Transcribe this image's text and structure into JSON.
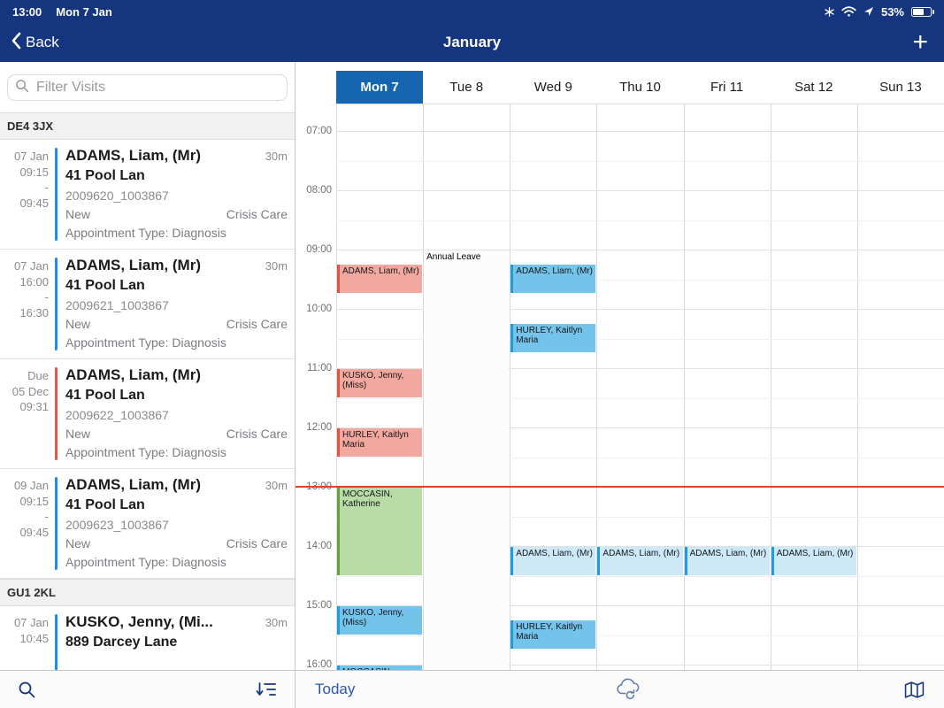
{
  "status_bar": {
    "time": "13:00",
    "date": "Mon 7 Jan",
    "battery_percent": "53%"
  },
  "nav_bar": {
    "back_label": "Back",
    "title": "January",
    "add_label": "+"
  },
  "sidebar": {
    "filter_placeholder": "Filter Visits",
    "sections": [
      {
        "header": "DE4 3JX",
        "visits": [
          {
            "time_lines": [
              "07 Jan",
              "09:15",
              "-",
              "09:45"
            ],
            "accent": "blue",
            "title": "ADAMS, Liam, (Mr)",
            "duration": "30m",
            "address": "41 Pool Lan",
            "reference": "2009620_1003867",
            "status": "New",
            "care_type": "Crisis Care",
            "appointment_type": "Appointment Type: Diagnosis"
          },
          {
            "time_lines": [
              "07 Jan",
              "16:00",
              "-",
              "16:30"
            ],
            "accent": "blue",
            "title": "ADAMS, Liam, (Mr)",
            "duration": "30m",
            "address": "41 Pool Lan",
            "reference": "2009621_1003867",
            "status": "New",
            "care_type": "Crisis Care",
            "appointment_type": "Appointment Type: Diagnosis"
          },
          {
            "time_lines": [
              "Due",
              "05 Dec",
              "09:31"
            ],
            "accent": "red",
            "title": "ADAMS, Liam, (Mr)",
            "duration": "",
            "address": "41 Pool Lan",
            "reference": "2009622_1003867",
            "status": "New",
            "care_type": "Crisis Care",
            "appointment_type": "Appointment Type: Diagnosis"
          },
          {
            "time_lines": [
              "09 Jan",
              "09:15",
              "-",
              "09:45"
            ],
            "accent": "blue",
            "title": "ADAMS, Liam, (Mr)",
            "duration": "30m",
            "address": "41 Pool Lan",
            "reference": "2009623_1003867",
            "status": "New",
            "care_type": "Crisis Care",
            "appointment_type": "Appointment Type: Diagnosis"
          }
        ]
      },
      {
        "header": "GU1 2KL",
        "visits": [
          {
            "time_lines": [
              "07 Jan",
              "10:45"
            ],
            "accent": "blue",
            "title": "KUSKO, Jenny, (Mi...",
            "duration": "30m",
            "address": "889 Darcey Lane",
            "reference": "",
            "status": "",
            "care_type": "",
            "appointment_type": ""
          }
        ]
      }
    ]
  },
  "calendar": {
    "title_days": [
      {
        "label": "Mon 7",
        "selected": true
      },
      {
        "label": "Tue 8",
        "selected": false
      },
      {
        "label": "Wed 9",
        "selected": false
      },
      {
        "label": "Thu 10",
        "selected": false
      },
      {
        "label": "Fri 11",
        "selected": false
      },
      {
        "label": "Sat 12",
        "selected": false
      },
      {
        "label": "Sun 13",
        "selected": false
      }
    ],
    "hours": [
      "07:00",
      "08:00",
      "09:00",
      "10:00",
      "11:00",
      "12:00",
      "13:00",
      "14:00",
      "15:00",
      "16:00"
    ],
    "events": [
      {
        "day": 0,
        "start": "09:15",
        "end": "09:45",
        "title": "ADAMS, Liam, (Mr)",
        "type": "red"
      },
      {
        "day": 0,
        "start": "11:00",
        "end": "11:30",
        "title": "KUSKO, Jenny, (Miss)",
        "type": "red"
      },
      {
        "day": 0,
        "start": "12:00",
        "end": "12:30",
        "title": "HURLEY, Kaitlyn Maria",
        "type": "red"
      },
      {
        "day": 0,
        "start": "13:00",
        "end": "14:30",
        "title": "MOCCASIN, Katherine",
        "type": "green"
      },
      {
        "day": 0,
        "start": "15:00",
        "end": "15:30",
        "title": "KUSKO, Jenny, (Miss)",
        "type": "blue"
      },
      {
        "day": 0,
        "start": "16:00",
        "end": "16:30",
        "title": "MOCCASIN, Katherine",
        "type": "blue"
      },
      {
        "day": 1,
        "start": "09:00",
        "end": "16:30",
        "title": "Annual Leave",
        "type": "leave"
      },
      {
        "day": 2,
        "start": "09:15",
        "end": "09:45",
        "title": "ADAMS, Liam, (Mr)",
        "type": "blue"
      },
      {
        "day": 2,
        "start": "10:15",
        "end": "10:45",
        "title": "HURLEY, Kaitlyn Maria",
        "type": "blue"
      },
      {
        "day": 2,
        "start": "14:00",
        "end": "14:30",
        "title": "ADAMS, Liam, (Mr)",
        "type": "paleblue"
      },
      {
        "day": 2,
        "start": "15:15",
        "end": "15:45",
        "title": "HURLEY, Kaitlyn Maria",
        "type": "blue"
      },
      {
        "day": 3,
        "start": "14:00",
        "end": "14:30",
        "title": "ADAMS, Liam, (Mr)",
        "type": "paleblue"
      },
      {
        "day": 4,
        "start": "14:00",
        "end": "14:30",
        "title": "ADAMS, Liam, (Mr)",
        "type": "paleblue"
      },
      {
        "day": 5,
        "start": "14:00",
        "end": "14:30",
        "title": "ADAMS, Liam, (Mr)",
        "type": "paleblue"
      }
    ],
    "now_time": "13:00",
    "toolbar": {
      "today_label": "Today"
    }
  },
  "colors": {
    "navy_header": "#16357f",
    "selected_day": "#1565b0",
    "event_red_bg": "#f3a89f",
    "event_red_border": "#dd5346",
    "event_green_bg": "#b9dca6",
    "event_green_border": "#63a23f",
    "event_blue_bg": "#74c3ea",
    "event_blue_border": "#1d9ce0",
    "event_paleblue_bg": "#cde8f7",
    "accent_blue": "#1f8ceb",
    "accent_red": "#e2574b",
    "now_line": "#ef3b2e"
  }
}
